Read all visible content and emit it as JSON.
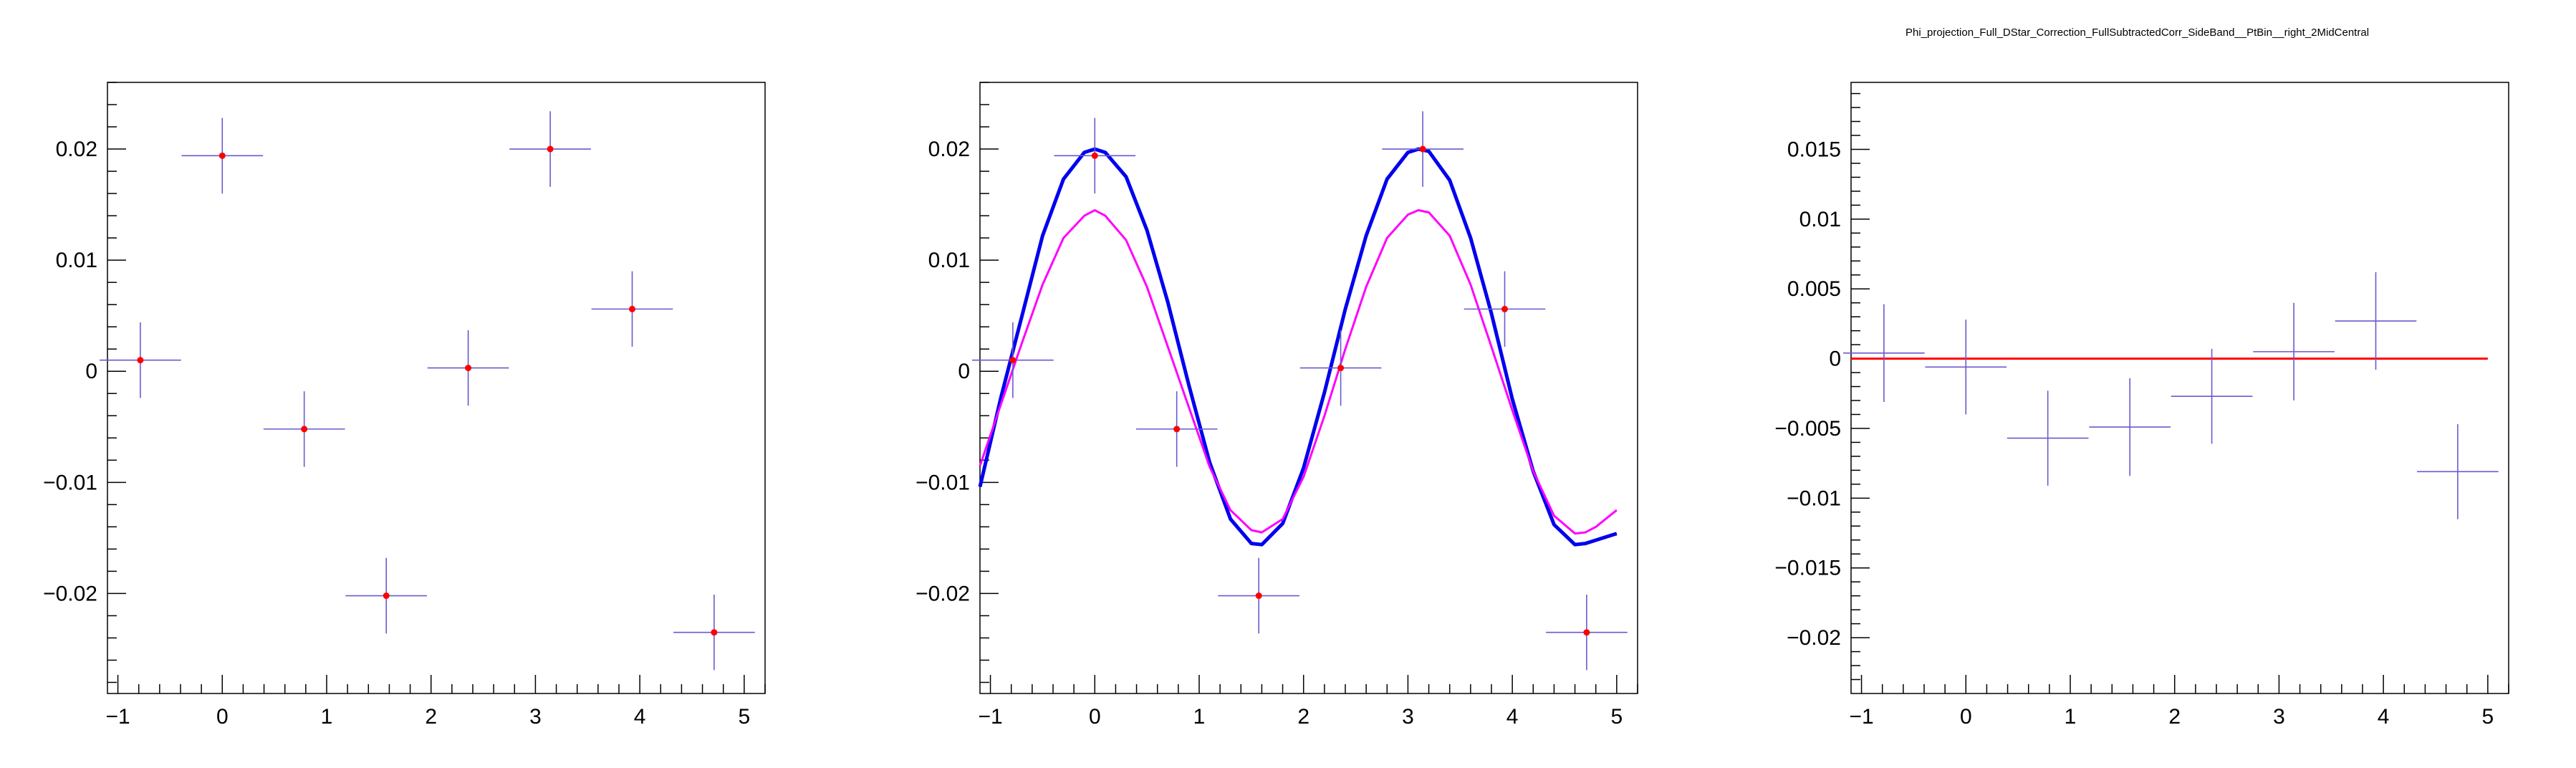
{
  "page_title": "Phi_projection_Full_DStar_Correction_FullSubtractedCorr_SideBand__PtBin__right_2MidCentral",
  "colors": {
    "points": "#6a5acd",
    "marker": "#ff0000",
    "fit_total": "#0000ee",
    "fit_component": "#ff00ff",
    "zero_line": "#ff0000",
    "frame": "#000000"
  },
  "chart_data": [
    {
      "type": "scatter",
      "title": "",
      "xlabel": "",
      "ylabel": "",
      "xlim": [
        -1.1,
        5.2
      ],
      "ylim": [
        -0.029,
        0.026
      ],
      "x_ticks": [
        -1,
        0,
        1,
        2,
        3,
        4,
        5
      ],
      "x_tick_labels": [
        "−1",
        "0",
        "1",
        "2",
        "3",
        "4",
        "5"
      ],
      "y_ticks": [
        -0.02,
        -0.01,
        0,
        0.01,
        0.02
      ],
      "y_tick_labels": [
        "−0.02",
        "−0.01",
        "0",
        "0.01",
        "0.02"
      ],
      "grid": false,
      "series": [
        {
          "x": [
            -0.785,
            0.0,
            0.785,
            1.571,
            2.356,
            3.142,
            3.927,
            4.712
          ],
          "y": [
            0.001,
            0.0194,
            -0.0052,
            -0.0202,
            0.0003,
            0.02,
            0.0056,
            -0.0235
          ],
          "x_err": [
            0.39,
            0.39,
            0.39,
            0.39,
            0.39,
            0.39,
            0.39,
            0.39
          ],
          "y_err": [
            0.0034,
            0.0034,
            0.0034,
            0.0034,
            0.0034,
            0.0034,
            0.0034,
            0.0034
          ]
        }
      ]
    },
    {
      "type": "scatter",
      "title": "",
      "xlabel": "",
      "ylabel": "",
      "xlim": [
        -1.1,
        5.2
      ],
      "ylim": [
        -0.029,
        0.026
      ],
      "x_ticks": [
        -1,
        0,
        1,
        2,
        3,
        4,
        5
      ],
      "x_tick_labels": [
        "−1",
        "0",
        "1",
        "2",
        "3",
        "4",
        "5"
      ],
      "y_ticks": [
        -0.02,
        -0.01,
        0,
        0.01,
        0.02
      ],
      "y_tick_labels": [
        "−0.02",
        "−0.01",
        "0",
        "0.01",
        "0.02"
      ],
      "grid": false,
      "series": [
        {
          "x": [
            -0.785,
            0.0,
            0.785,
            1.571,
            2.356,
            3.142,
            3.927,
            4.712
          ],
          "y": [
            0.001,
            0.0194,
            -0.0052,
            -0.0202,
            0.0003,
            0.02,
            0.0056,
            -0.0235
          ],
          "x_err": [
            0.39,
            0.39,
            0.39,
            0.39,
            0.39,
            0.39,
            0.39,
            0.39
          ],
          "y_err": [
            0.0034,
            0.0034,
            0.0034,
            0.0034,
            0.0034,
            0.0034,
            0.0034,
            0.0034
          ]
        }
      ],
      "curves": [
        {
          "kind": "total_fit",
          "x": [
            -1.1,
            -0.9,
            -0.7,
            -0.5,
            -0.3,
            -0.1,
            0.0,
            0.1,
            0.3,
            0.5,
            0.7,
            0.9,
            1.1,
            1.3,
            1.5,
            1.6,
            1.8,
            2.0,
            2.2,
            2.4,
            2.6,
            2.8,
            3.0,
            3.1,
            3.2,
            3.4,
            3.6,
            3.8,
            4.0,
            4.2,
            4.4,
            4.6,
            4.7,
            4.8,
            5.0
          ],
          "y": [
            -0.0104,
            -0.0024,
            0.0049,
            0.0122,
            0.0173,
            0.0197,
            0.02,
            0.0197,
            0.0175,
            0.0127,
            0.0062,
            -0.0012,
            -0.0082,
            -0.0133,
            -0.0155,
            -0.0156,
            -0.0137,
            -0.0087,
            -0.0019,
            0.0056,
            0.0122,
            0.0173,
            0.0197,
            0.02,
            0.0198,
            0.0172,
            0.012,
            0.0052,
            -0.0025,
            -0.009,
            -0.0138,
            -0.0156,
            -0.0155,
            -0.0152,
            -0.0146
          ]
        },
        {
          "kind": "component_fit",
          "x": [
            -1.1,
            -0.9,
            -0.7,
            -0.5,
            -0.3,
            -0.1,
            0.0,
            0.1,
            0.3,
            0.5,
            0.7,
            0.9,
            1.1,
            1.3,
            1.5,
            1.6,
            1.8,
            2.0,
            2.2,
            2.4,
            2.6,
            2.8,
            3.0,
            3.1,
            3.2,
            3.4,
            3.6,
            3.8,
            4.0,
            4.2,
            4.4,
            4.6,
            4.7,
            4.8,
            5.0
          ],
          "y": [
            -0.0085,
            -0.003,
            0.0025,
            0.0078,
            0.012,
            0.014,
            0.0145,
            0.014,
            0.0118,
            0.0076,
            0.0022,
            -0.0032,
            -0.0086,
            -0.0125,
            -0.0143,
            -0.0145,
            -0.0133,
            -0.0095,
            -0.004,
            0.002,
            0.0076,
            0.012,
            0.0141,
            0.0145,
            0.0143,
            0.0122,
            0.0078,
            0.0022,
            -0.0035,
            -0.009,
            -0.013,
            -0.0146,
            -0.0145,
            -0.014,
            -0.0125
          ]
        }
      ]
    },
    {
      "type": "scatter",
      "title": "",
      "xlabel": "",
      "ylabel": "",
      "xlim": [
        -1.1,
        5.2
      ],
      "ylim": [
        -0.024,
        0.0198
      ],
      "x_ticks": [
        -1,
        0,
        1,
        2,
        3,
        4,
        5
      ],
      "x_tick_labels": [
        "−1",
        "0",
        "1",
        "2",
        "3",
        "4",
        "5"
      ],
      "y_ticks": [
        -0.02,
        -0.015,
        -0.01,
        -0.005,
        0,
        0.005,
        0.01,
        0.015
      ],
      "y_tick_labels": [
        "−0.02",
        "−0.015",
        "−0.01",
        "−0.005",
        "0",
        "0.005",
        "0.01",
        "0.015"
      ],
      "grid": false,
      "reference_line": {
        "y": 0,
        "x_from": -1.1,
        "x_to": 5.0
      },
      "series": [
        {
          "x": [
            -0.785,
            0.0,
            0.785,
            1.571,
            2.356,
            3.142,
            3.927,
            4.712
          ],
          "y": [
            0.0004,
            -0.0006,
            -0.0057,
            -0.0049,
            -0.0027,
            0.0005,
            0.0027,
            -0.0081
          ],
          "x_err": [
            0.39,
            0.39,
            0.39,
            0.39,
            0.39,
            0.39,
            0.39,
            0.39
          ],
          "y_err": [
            0.0035,
            0.0034,
            0.0034,
            0.0035,
            0.0034,
            0.0035,
            0.0035,
            0.0034
          ]
        }
      ]
    }
  ]
}
